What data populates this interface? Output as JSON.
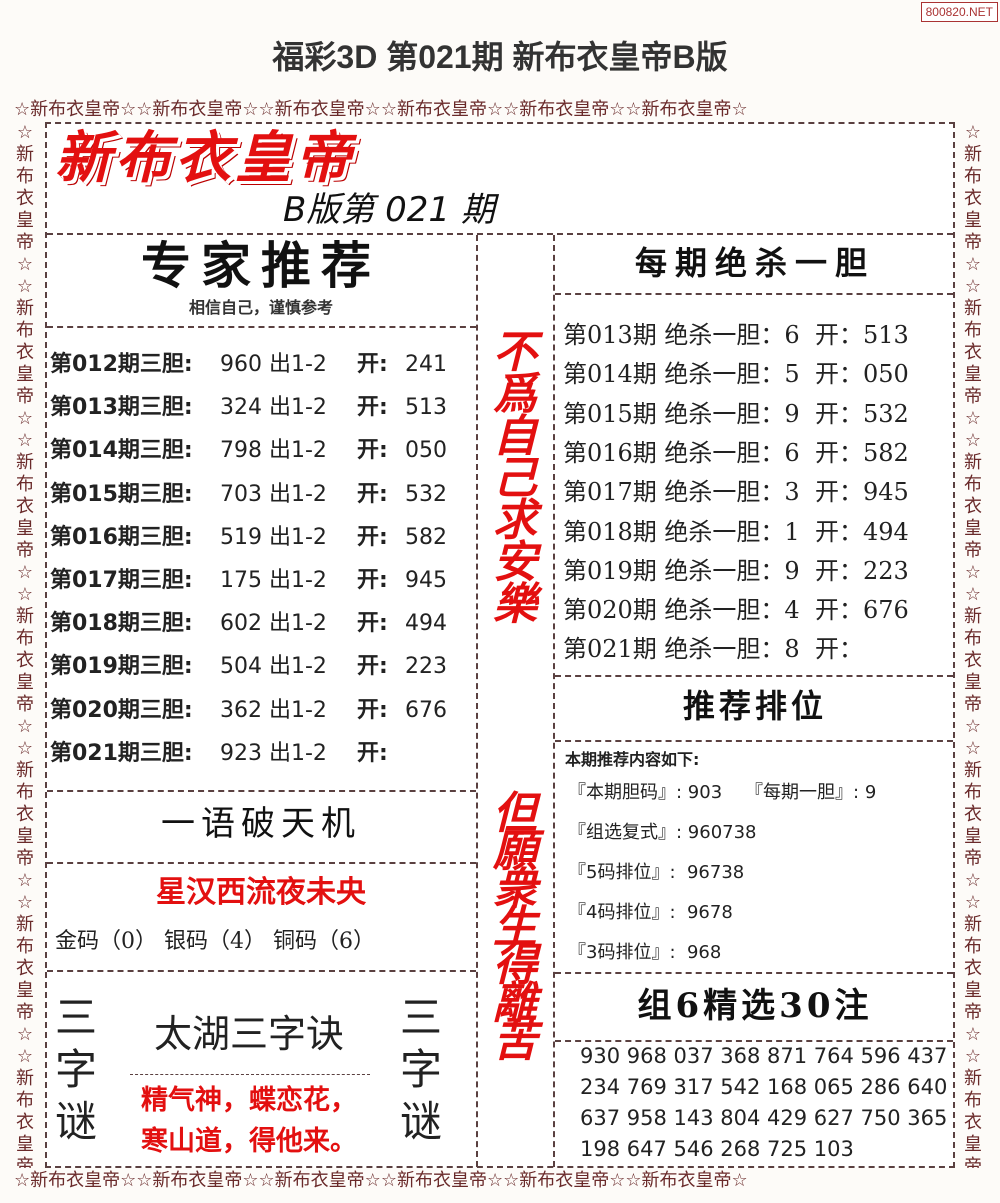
{
  "watermark": "800820.NET",
  "title": "福彩3D 第021期 新布衣皇帝B版",
  "border_text": "☆新布衣皇帝☆☆新布衣皇帝☆☆新布衣皇帝☆☆新布衣皇帝☆☆新布衣皇帝☆☆新布衣皇帝☆",
  "side_text": "☆新布衣皇帝☆☆新布衣皇帝☆☆新布衣皇帝☆☆新布衣皇帝☆☆新布衣皇帝☆☆新布衣皇帝☆☆新布衣皇帝☆☆新布衣皇帝☆",
  "logo": "新布衣皇帝",
  "issue": "B版第 021 期",
  "expert": {
    "title": "专家推荐",
    "subtitle": "相信自己，谨慎参考",
    "rows": [
      {
        "label": "第012期三胆:",
        "code": "960 出1-2",
        "open_label": "开:",
        "open": "241"
      },
      {
        "label": "第013期三胆:",
        "code": "324 出1-2",
        "open_label": "开:",
        "open": "513"
      },
      {
        "label": "第014期三胆:",
        "code": "798 出1-2",
        "open_label": "开:",
        "open": "050"
      },
      {
        "label": "第015期三胆:",
        "code": "703 出1-2",
        "open_label": "开:",
        "open": "532"
      },
      {
        "label": "第016期三胆:",
        "code": "519 出1-2",
        "open_label": "开:",
        "open": "582"
      },
      {
        "label": "第017期三胆:",
        "code": "175 出1-2",
        "open_label": "开:",
        "open": "945"
      },
      {
        "label": "第018期三胆:",
        "code": "602 出1-2",
        "open_label": "开:",
        "open": "494"
      },
      {
        "label": "第019期三胆:",
        "code": "504 出1-2",
        "open_label": "开:",
        "open": "223"
      },
      {
        "label": "第020期三胆:",
        "code": "362 出1-2",
        "open_label": "开:",
        "open": "676"
      },
      {
        "label": "第021期三胆:",
        "code": "923 出1-2",
        "open_label": "开:",
        "open": ""
      }
    ]
  },
  "yiyu": {
    "title": "一语破天机",
    "phrase": "星汉西流夜未央",
    "codes": "金码（0） 银码（4） 铜码（6）"
  },
  "riddle": {
    "side": "三字谜",
    "title": "太湖三字诀",
    "line1": "精气神，蝶恋花，",
    "line2": "寒山道，得他来。"
  },
  "motto1": "不爲自己求安樂",
  "motto2": "但願衆生得離苦",
  "kill": {
    "title": "每期绝杀一胆",
    "rows": [
      "第013期 绝杀一胆：6  开：513",
      "第014期 绝杀一胆：5  开：050",
      "第015期 绝杀一胆：9  开：532",
      "第016期 绝杀一胆：6  开：582",
      "第017期 绝杀一胆：3  开：945",
      "第018期 绝杀一胆：1  开：494",
      "第019期 绝杀一胆：9  开：223",
      "第020期 绝杀一胆：4  开：676",
      "第021期 绝杀一胆：8  开："
    ]
  },
  "rank": {
    "title": "推荐排位",
    "intro": "本期推荐内容如下:",
    "rows": [
      "『本期胆码』: 903    『每期一胆』: 9",
      "『组选复式』: 960738",
      "『5码排位』:  96738",
      "『4码排位』:  9678",
      "『3码排位』:  968"
    ]
  },
  "group6": {
    "title": "组6精选30注",
    "lines": [
      "930 968 037 368 871 764 596 437",
      "234 769 317 542 168 065 286 640",
      "637 958 143 804 429 627 750 365",
      "198 647 546 268 725 103"
    ]
  }
}
